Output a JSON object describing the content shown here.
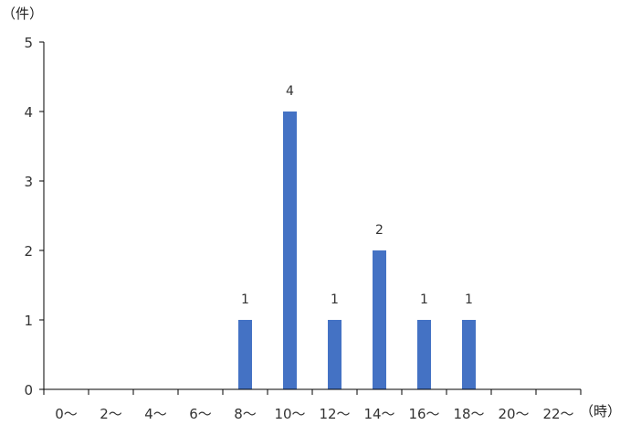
{
  "chart_data": {
    "type": "bar",
    "y_unit": "（件）",
    "x_unit": "（時）",
    "categories": [
      "0～",
      "2～",
      "4～",
      "6～",
      "8～",
      "10～",
      "12～",
      "14～",
      "16～",
      "18～",
      "20～",
      "22～"
    ],
    "values": [
      0,
      0,
      0,
      0,
      1,
      4,
      1,
      2,
      1,
      1,
      0,
      0
    ],
    "ylim": [
      0,
      5
    ],
    "yticks": [
      0,
      1,
      2,
      3,
      4,
      5
    ],
    "grid": false,
    "legend": "none",
    "bar_color": "#4472C4",
    "axis_color": "#000000"
  }
}
